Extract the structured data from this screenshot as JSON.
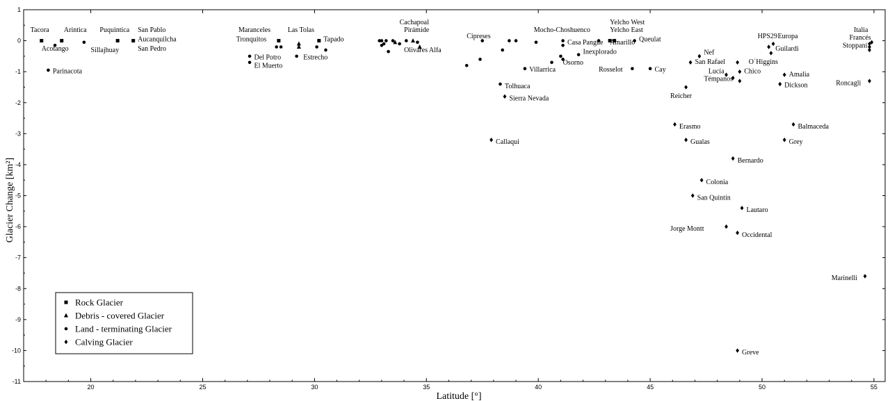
{
  "chart_data": {
    "type": "scatter",
    "title": "",
    "xlabel": "Latitude [°]",
    "ylabel": "Glacier Change [km²]",
    "xlim": [
      17,
      55.5
    ],
    "ylim": [
      -11,
      1
    ],
    "xticks": [
      20,
      25,
      30,
      35,
      40,
      45,
      50,
      55
    ],
    "yticks": [
      1,
      0,
      -1,
      -2,
      -3,
      -4,
      -5,
      -6,
      -7,
      -8,
      -9,
      -10,
      -11
    ],
    "grid": false,
    "legend_position": "bottom-left",
    "legend": [
      {
        "marker": "square",
        "label": "Rock Glacier"
      },
      {
        "marker": "triangle",
        "label": "Debris - covered Glacier"
      },
      {
        "marker": "circle",
        "label": "Land - terminating Glacier"
      },
      {
        "marker": "diamond",
        "label": "Calving Glacier"
      }
    ],
    "points": [
      {
        "x": 17.8,
        "y": 0,
        "m": "square"
      },
      {
        "x": 18.7,
        "y": 0,
        "m": "square"
      },
      {
        "x": 18.4,
        "y": -0.15,
        "m": "circle"
      },
      {
        "x": 19.7,
        "y": -0.05,
        "m": "circle"
      },
      {
        "x": 21.2,
        "y": 0,
        "m": "square"
      },
      {
        "x": 21.9,
        "y": 0,
        "m": "square"
      },
      {
        "x": 18.1,
        "y": -0.95,
        "m": "circle"
      },
      {
        "x": 28.4,
        "y": 0,
        "m": "square"
      },
      {
        "x": 28.3,
        "y": -0.2,
        "m": "circle"
      },
      {
        "x": 28.5,
        "y": -0.2,
        "m": "circle"
      },
      {
        "x": 27.1,
        "y": -0.5,
        "m": "circle"
      },
      {
        "x": 27.1,
        "y": -0.7,
        "m": "circle"
      },
      {
        "x": 29.3,
        "y": -0.1,
        "m": "triangle"
      },
      {
        "x": 29.3,
        "y": -0.2,
        "m": "triangle"
      },
      {
        "x": 30.2,
        "y": 0,
        "m": "square"
      },
      {
        "x": 30.1,
        "y": -0.2,
        "m": "circle"
      },
      {
        "x": 30.5,
        "y": -0.3,
        "m": "circle"
      },
      {
        "x": 29.2,
        "y": -0.5,
        "m": "circle"
      },
      {
        "x": 32.9,
        "y": 0,
        "m": "circle"
      },
      {
        "x": 33.0,
        "y": 0,
        "m": "circle"
      },
      {
        "x": 33.1,
        "y": -0.1,
        "m": "circle"
      },
      {
        "x": 33.2,
        "y": 0,
        "m": "circle"
      },
      {
        "x": 33.0,
        "y": -0.15,
        "m": "circle"
      },
      {
        "x": 33.5,
        "y": 0,
        "m": "circle"
      },
      {
        "x": 33.6,
        "y": -0.05,
        "m": "triangle"
      },
      {
        "x": 33.8,
        "y": -0.1,
        "m": "circle"
      },
      {
        "x": 34.1,
        "y": 0,
        "m": "circle"
      },
      {
        "x": 34.4,
        "y": 0,
        "m": "triangle"
      },
      {
        "x": 34.6,
        "y": -0.05,
        "m": "circle"
      },
      {
        "x": 34.7,
        "y": -0.2,
        "m": "triangle"
      },
      {
        "x": 33.3,
        "y": -0.35,
        "m": "circle"
      },
      {
        "x": 37.5,
        "y": 0,
        "m": "circle"
      },
      {
        "x": 38.7,
        "y": 0,
        "m": "circle"
      },
      {
        "x": 39.0,
        "y": 0,
        "m": "circle"
      },
      {
        "x": 39.9,
        "y": -0.05,
        "m": "circle"
      },
      {
        "x": 38.4,
        "y": -0.3,
        "m": "circle"
      },
      {
        "x": 37.4,
        "y": -0.6,
        "m": "circle"
      },
      {
        "x": 36.8,
        "y": -0.8,
        "m": "circle"
      },
      {
        "x": 39.4,
        "y": -0.9,
        "m": "circle"
      },
      {
        "x": 40.6,
        "y": -0.7,
        "m": "circle"
      },
      {
        "x": 41.0,
        "y": -0.5,
        "m": "circle"
      },
      {
        "x": 41.1,
        "y": -0.6,
        "m": "circle"
      },
      {
        "x": 41.1,
        "y": -0.15,
        "m": "circle"
      },
      {
        "x": 41.1,
        "y": 0,
        "m": "circle"
      },
      {
        "x": 41.8,
        "y": -0.45,
        "m": "circle"
      },
      {
        "x": 42.7,
        "y": 0,
        "m": "circle"
      },
      {
        "x": 43.2,
        "y": 0,
        "m": "square"
      },
      {
        "x": 43.4,
        "y": 0,
        "m": "square"
      },
      {
        "x": 44.3,
        "y": 0,
        "m": "circle"
      },
      {
        "x": 44.2,
        "y": -0.9,
        "m": "circle"
      },
      {
        "x": 45.0,
        "y": -0.9,
        "m": "circle"
      },
      {
        "x": 38.3,
        "y": -1.4,
        "m": "circle"
      },
      {
        "x": 38.5,
        "y": -1.8,
        "m": "diamond"
      },
      {
        "x": 37.9,
        "y": -3.2,
        "m": "diamond"
      },
      {
        "x": 47.2,
        "y": -0.5,
        "m": "diamond"
      },
      {
        "x": 46.8,
        "y": -0.7,
        "m": "diamond"
      },
      {
        "x": 46.6,
        "y": -1.5,
        "m": "diamond"
      },
      {
        "x": 48.4,
        "y": -1.1,
        "m": "diamond"
      },
      {
        "x": 48.7,
        "y": -1.2,
        "m": "diamond"
      },
      {
        "x": 49.0,
        "y": -1.0,
        "m": "diamond"
      },
      {
        "x": 48.9,
        "y": -0.7,
        "m": "diamond"
      },
      {
        "x": 49.0,
        "y": -1.3,
        "m": "diamond"
      },
      {
        "x": 50.3,
        "y": -0.2,
        "m": "diamond"
      },
      {
        "x": 50.4,
        "y": -0.4,
        "m": "diamond"
      },
      {
        "x": 50.5,
        "y": -0.1,
        "m": "diamond"
      },
      {
        "x": 51.0,
        "y": -1.1,
        "m": "diamond"
      },
      {
        "x": 50.8,
        "y": -1.4,
        "m": "diamond"
      },
      {
        "x": 46.1,
        "y": -2.7,
        "m": "diamond"
      },
      {
        "x": 46.6,
        "y": -3.2,
        "m": "diamond"
      },
      {
        "x": 51.4,
        "y": -2.7,
        "m": "diamond"
      },
      {
        "x": 51.0,
        "y": -3.2,
        "m": "diamond"
      },
      {
        "x": 48.7,
        "y": -3.8,
        "m": "diamond"
      },
      {
        "x": 47.3,
        "y": -4.5,
        "m": "diamond"
      },
      {
        "x": 46.9,
        "y": -5.0,
        "m": "diamond"
      },
      {
        "x": 49.1,
        "y": -5.4,
        "m": "diamond"
      },
      {
        "x": 48.4,
        "y": -6.0,
        "m": "diamond"
      },
      {
        "x": 48.9,
        "y": -6.2,
        "m": "diamond"
      },
      {
        "x": 54.6,
        "y": -7.6,
        "m": "diamond"
      },
      {
        "x": 48.9,
        "y": -10.0,
        "m": "diamond"
      },
      {
        "x": 54.8,
        "y": -0.1,
        "m": "diamond"
      },
      {
        "x": 54.9,
        "y": -0.05,
        "m": "diamond"
      },
      {
        "x": 54.8,
        "y": -0.2,
        "m": "diamond"
      },
      {
        "x": 54.8,
        "y": -0.3,
        "m": "diamond"
      },
      {
        "x": 54.8,
        "y": -1.3,
        "m": "diamond"
      }
    ],
    "annotations": [
      {
        "text": "Tacora",
        "x": 17.3,
        "y": 0.28
      },
      {
        "text": "Arintica",
        "x": 18.8,
        "y": 0.28
      },
      {
        "text": "Puquintica",
        "x": 20.4,
        "y": 0.28
      },
      {
        "text": "San Pablo",
        "x": 22.1,
        "y": 0.28
      },
      {
        "text": "Acotango",
        "x": 17.8,
        "y": -0.32
      },
      {
        "text": "Sillajhuay",
        "x": 20.0,
        "y": -0.37
      },
      {
        "text": "Aucanquilcha",
        "x": 22.1,
        "y": -0.02
      },
      {
        "text": "San Pedro",
        "x": 22.1,
        "y": -0.32
      },
      {
        "text": "Parinacota",
        "x": 18.3,
        "y": -1.05
      },
      {
        "text": "Maranceles",
        "x": 26.6,
        "y": 0.28
      },
      {
        "text": "Las Tolas",
        "x": 28.8,
        "y": 0.28
      },
      {
        "text": "Tronquitos",
        "x": 26.5,
        "y": -0.02
      },
      {
        "text": "Tapado",
        "x": 30.4,
        "y": -0.02
      },
      {
        "text": "Del Potro",
        "x": 27.3,
        "y": -0.6
      },
      {
        "text": "El Muerto",
        "x": 27.3,
        "y": -0.87
      },
      {
        "text": "Estrecho",
        "x": 29.5,
        "y": -0.6
      },
      {
        "text": "Cachapoal",
        "x": 33.8,
        "y": 0.53
      },
      {
        "text": "Pirámide",
        "x": 34.0,
        "y": 0.28
      },
      {
        "text": "Olivares Alfa",
        "x": 34.0,
        "y": -0.37
      },
      {
        "text": "Cipreses",
        "x": 36.8,
        "y": 0.08
      },
      {
        "text": "Mocho-Choshuenco",
        "x": 39.8,
        "y": 0.28
      },
      {
        "text": "Casa Pangue",
        "x": 41.3,
        "y": -0.12
      },
      {
        "text": "Inexplorado",
        "x": 42.0,
        "y": -0.42
      },
      {
        "text": "Osorno",
        "x": 41.1,
        "y": -0.77
      },
      {
        "text": "Villarrica",
        "x": 39.6,
        "y": -1.0
      },
      {
        "text": "Yelcho West",
        "x": 43.2,
        "y": 0.53
      },
      {
        "text": "Yelcho East",
        "x": 43.2,
        "y": 0.28
      },
      {
        "text": "Amarillo",
        "x": 43.2,
        "y": -0.12
      },
      {
        "text": "Queulat",
        "x": 44.5,
        "y": -0.02
      },
      {
        "text": "Rosselot",
        "x": 42.7,
        "y": -1.0
      },
      {
        "text": "Cay",
        "x": 45.2,
        "y": -1.0
      },
      {
        "text": "Tolhuaca",
        "x": 38.5,
        "y": -1.53
      },
      {
        "text": "Sierra Nevada",
        "x": 38.7,
        "y": -1.93
      },
      {
        "text": "Callaqui",
        "x": 38.1,
        "y": -3.33
      },
      {
        "text": "Nef",
        "x": 47.4,
        "y": -0.45
      },
      {
        "text": "San Rafael",
        "x": 47.0,
        "y": -0.75
      },
      {
        "text": "O´Higgins",
        "x": 49.4,
        "y": -0.75
      },
      {
        "text": "Lucía",
        "x": 47.6,
        "y": -1.05
      },
      {
        "text": "Chico",
        "x": 49.2,
        "y": -1.05
      },
      {
        "text": "Témpanos",
        "x": 47.4,
        "y": -1.3
      },
      {
        "text": "Reicher",
        "x": 45.9,
        "y": -1.85
      },
      {
        "text": "Amalia",
        "x": 51.2,
        "y": -1.15
      },
      {
        "text": "Dickson",
        "x": 51.0,
        "y": -1.5
      },
      {
        "text": "HPS29",
        "x": 49.8,
        "y": 0.08
      },
      {
        "text": "Europa",
        "x": 50.7,
        "y": 0.08
      },
      {
        "text": "Guilardi",
        "x": 50.6,
        "y": -0.32
      },
      {
        "text": "Italia",
        "x": 54.1,
        "y": 0.28
      },
      {
        "text": "Francés",
        "x": 53.9,
        "y": 0.03
      },
      {
        "text": "Stoppani",
        "x": 53.6,
        "y": -0.22
      },
      {
        "text": "Roncagli",
        "x": 53.3,
        "y": -1.43
      },
      {
        "text": "Erasmo",
        "x": 46.3,
        "y": -2.83
      },
      {
        "text": "Gualas",
        "x": 46.8,
        "y": -3.33
      },
      {
        "text": "Balmaceda",
        "x": 51.6,
        "y": -2.83
      },
      {
        "text": "Grey",
        "x": 51.2,
        "y": -3.33
      },
      {
        "text": "Bernardo",
        "x": 48.9,
        "y": -3.93
      },
      {
        "text": "Colonia",
        "x": 47.5,
        "y": -4.63
      },
      {
        "text": "San Quintín",
        "x": 47.1,
        "y": -5.13
      },
      {
        "text": "Lautaro",
        "x": 49.3,
        "y": -5.53
      },
      {
        "text": "Jorge Montt",
        "x": 45.9,
        "y": -6.13
      },
      {
        "text": "Occidental",
        "x": 49.1,
        "y": -6.33
      },
      {
        "text": "Marinelli",
        "x": 53.1,
        "y": -7.73
      },
      {
        "text": "Greve",
        "x": 49.1,
        "y": -10.13
      }
    ]
  }
}
